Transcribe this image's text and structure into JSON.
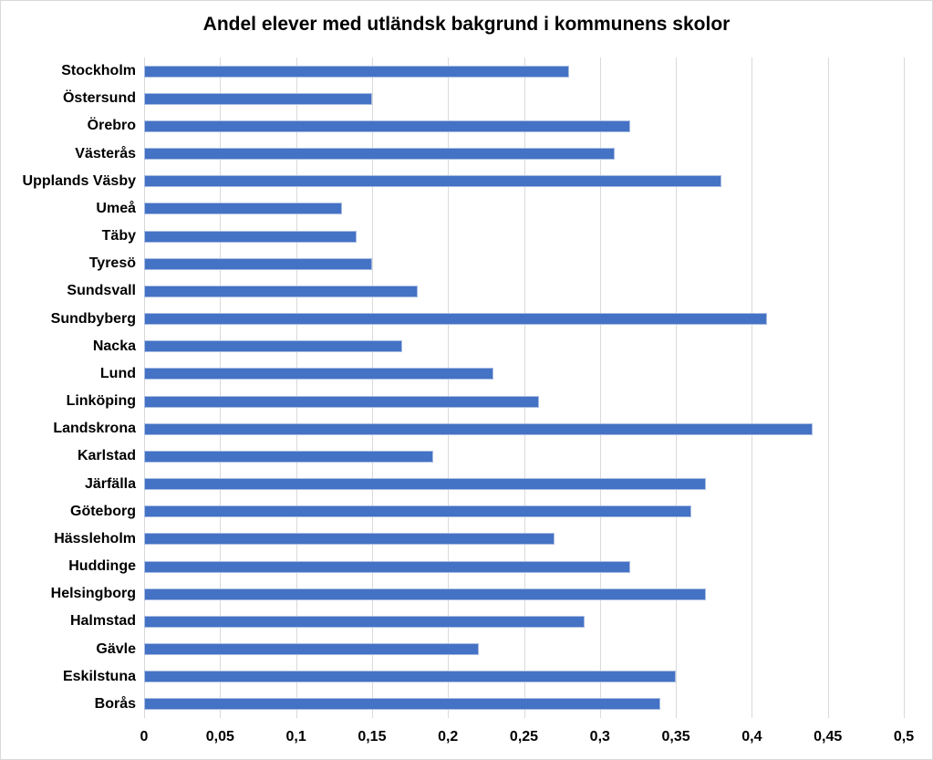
{
  "chart_data": {
    "type": "bar",
    "orientation": "horizontal",
    "title": "Andel elever med utländsk bakgrund i kommunens skolor",
    "categories": [
      "Stockholm",
      "Östersund",
      "Örebro",
      "Västerås",
      "Upplands Väsby",
      "Umeå",
      "Täby",
      "Tyresö",
      "Sundsvall",
      "Sundbyberg",
      "Nacka",
      "Lund",
      "Linköping",
      "Landskrona",
      "Karlstad",
      "Järfälla",
      "Göteborg",
      "Hässleholm",
      "Huddinge",
      "Helsingborg",
      "Halmstad",
      "Gävle",
      "Eskilstuna",
      "Borås"
    ],
    "values": [
      0.28,
      0.15,
      0.32,
      0.31,
      0.38,
      0.13,
      0.14,
      0.15,
      0.18,
      0.41,
      0.17,
      0.23,
      0.26,
      0.44,
      0.19,
      0.37,
      0.36,
      0.27,
      0.32,
      0.37,
      0.29,
      0.22,
      0.35,
      0.34
    ],
    "x_tick_labels": [
      "0",
      "0,05",
      "0,1",
      "0,15",
      "0,2",
      "0,25",
      "0,3",
      "0,35",
      "0,4",
      "0,45",
      "0,5"
    ],
    "xlim": [
      0,
      0.5
    ],
    "grid": "vertical",
    "legend_position": "none",
    "bar_color": "#4472C4",
    "bar_border_color": "#A9BCE2",
    "gridline_color": "#D9D9D9",
    "text_color": "#000000",
    "frame_color": "#D9D9D9",
    "background_color": "#FFFFFF"
  }
}
